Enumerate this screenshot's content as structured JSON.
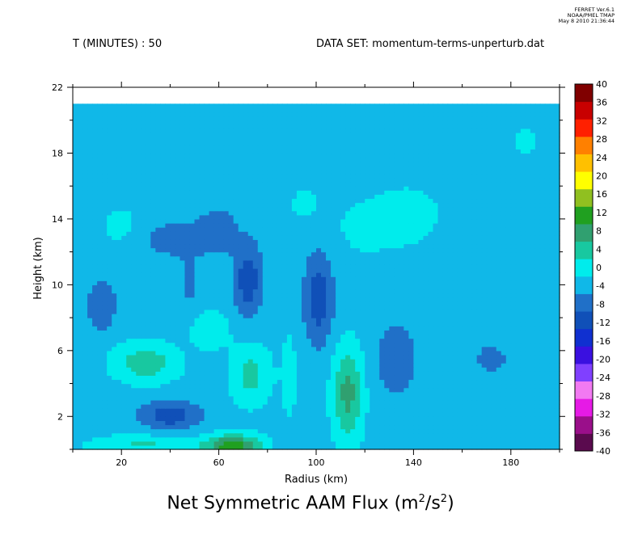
{
  "header": {
    "ferret_version": "FERRET Ver.6.1",
    "org": "NOAA/PMEL TMAP",
    "timestamp": "May 8 2010 21:36:44",
    "time_label": "T (MINUTES) : 50",
    "dataset_label": "DATA SET: momentum-terms-unperturb.dat"
  },
  "chart_data": {
    "type": "heatmap",
    "title_main": "Net Symmetric AAM Flux (m",
    "title_sup1": "2",
    "title_mid": "/s",
    "title_sup2": "2",
    "title_end": ")",
    "xlabel": "Radius (km)",
    "ylabel": "Height (km)",
    "xlim": [
      0,
      200
    ],
    "ylim": [
      0,
      22
    ],
    "data_top": 21,
    "xticks": [
      20,
      60,
      100,
      140,
      180
    ],
    "xticks_minor": [
      0,
      40,
      80,
      120,
      160,
      200
    ],
    "yticks": [
      2,
      6,
      10,
      14,
      18,
      22
    ],
    "yticks_minor": [
      0,
      4,
      8,
      12,
      16,
      20
    ],
    "colorbar": {
      "levels": [
        -40,
        -36,
        -32,
        -28,
        -24,
        -20,
        -16,
        -12,
        -8,
        -4,
        0,
        4,
        8,
        12,
        16,
        20,
        24,
        28,
        32,
        36,
        40
      ],
      "labels": [
        "40",
        "36",
        "32",
        "28",
        "24",
        "20",
        "16",
        "12",
        "8",
        "4",
        "0",
        "-4",
        "-8",
        "-12",
        "-16",
        "-20",
        "-24",
        "-28",
        "-32",
        "-36",
        "-40"
      ],
      "colors": [
        "#5a0a4e",
        "#9a0f8a",
        "#e61ae6",
        "#f27af2",
        "#8040ff",
        "#3a10e0",
        "#1030d0",
        "#1050b8",
        "#2070c8",
        "#10b8e8",
        "#00ecec",
        "#18c8a0",
        "#30a070",
        "#20a020",
        "#90c020",
        "#ffff00",
        "#ffc000",
        "#ff8000",
        "#ff2000",
        "#c80000",
        "#800000"
      ]
    },
    "base_value": -1.5,
    "features": [
      {
        "x": 20,
        "y": 13.5,
        "sx": 9,
        "sy": 1.4,
        "v": 3
      },
      {
        "x": 12,
        "y": 8.8,
        "sx": 6,
        "sy": 1.6,
        "v": -6
      },
      {
        "x": 30,
        "y": 5.3,
        "sx": 13,
        "sy": 1.2,
        "v": 8
      },
      {
        "x": 40,
        "y": 2.1,
        "sx": 12,
        "sy": 0.9,
        "v": -9
      },
      {
        "x": 42,
        "y": 12.8,
        "sx": 18,
        "sy": 1.3,
        "v": -4
      },
      {
        "x": 48,
        "y": 9.8,
        "sx": 5,
        "sy": 2.0,
        "v": -3
      },
      {
        "x": 72,
        "y": 10.3,
        "sx": 6,
        "sy": 2.2,
        "v": -9
      },
      {
        "x": 60,
        "y": 13.5,
        "sx": 8,
        "sy": 1.4,
        "v": -4
      },
      {
        "x": 73,
        "y": 4.6,
        "sx": 8,
        "sy": 1.8,
        "v": 7
      },
      {
        "x": 56,
        "y": 7.3,
        "sx": 8,
        "sy": 1.1,
        "v": 5
      },
      {
        "x": 66,
        "y": 0.2,
        "sx": 11,
        "sy": 0.7,
        "v": 16
      },
      {
        "x": 30,
        "y": 0.3,
        "sx": 22,
        "sy": 0.6,
        "v": 6
      },
      {
        "x": 101,
        "y": 9.2,
        "sx": 6,
        "sy": 2.8,
        "v": -9
      },
      {
        "x": 113,
        "y": 3.4,
        "sx": 6,
        "sy": 2.8,
        "v": 11
      },
      {
        "x": 89,
        "y": 4.5,
        "sx": 3.5,
        "sy": 3.0,
        "v": 3
      },
      {
        "x": 133,
        "y": 5.5,
        "sx": 8,
        "sy": 2.2,
        "v": -6
      },
      {
        "x": 140,
        "y": 14.2,
        "sx": 13,
        "sy": 1.8,
        "v": 3
      },
      {
        "x": 120,
        "y": 13.5,
        "sx": 18,
        "sy": 2.5,
        "v": 2
      },
      {
        "x": 172,
        "y": 5.5,
        "sx": 12,
        "sy": 1.7,
        "v": -3
      },
      {
        "x": 186,
        "y": 18.7,
        "sx": 7,
        "sy": 1.0,
        "v": 2.5
      },
      {
        "x": 95,
        "y": 15.0,
        "sx": 8,
        "sy": 1.2,
        "v": 2
      },
      {
        "x": 168,
        "y": 11.5,
        "sx": 25,
        "sy": 3.0,
        "v": -1
      }
    ]
  }
}
